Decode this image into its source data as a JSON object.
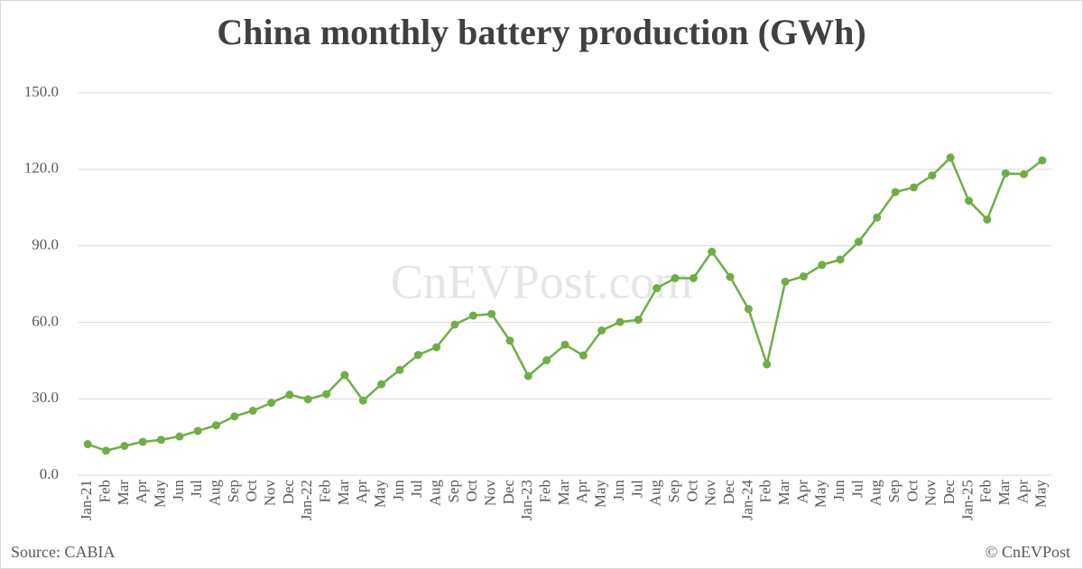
{
  "chart_data": {
    "type": "line",
    "title": "China monthly battery production (GWh)",
    "categories": [
      "Jan-21",
      "Feb",
      "Mar",
      "Apr",
      "May",
      "Jun",
      "Jul",
      "Aug",
      "Sep",
      "Oct",
      "Nov",
      "Dec",
      "Jan-22",
      "Feb",
      "Mar",
      "Apr",
      "May",
      "Jun",
      "Jul",
      "Aug",
      "Sep",
      "Oct",
      "Nov",
      "Dec",
      "Jan-23",
      "Feb",
      "Mar",
      "Apr",
      "May",
      "Jun",
      "Jul",
      "Aug",
      "Sep",
      "Oct",
      "Nov",
      "Dec",
      "Jan-24",
      "Feb",
      "Mar",
      "Apr",
      "May",
      "Jun",
      "Jul",
      "Aug",
      "Sep",
      "Oct",
      "Nov",
      "Dec",
      "Jan-25",
      "Feb",
      "Mar",
      "Apr",
      "May"
    ],
    "values": [
      12.2,
      9.6,
      11.5,
      13.1,
      13.9,
      15.2,
      17.4,
      19.6,
      23.1,
      25.3,
      28.4,
      31.6,
      29.8,
      31.8,
      39.3,
      29.3,
      35.7,
      41.3,
      47.2,
      50.2,
      59.1,
      62.6,
      63.3,
      52.8,
      38.9,
      45.1,
      51.2,
      47.0,
      56.8,
      60.1,
      61.0,
      73.4,
      77.3,
      77.3,
      87.7,
      77.8,
      65.2,
      43.5,
      75.9,
      78.0,
      82.5,
      84.6,
      91.6,
      101.1,
      111.1,
      112.9,
      117.6,
      124.6,
      107.7,
      100.3,
      118.4,
      118.1,
      123.5
    ],
    "color": "#70ad47",
    "ylim": [
      0,
      150
    ],
    "yticks": [
      {
        "value": 0,
        "label": "0.0"
      },
      {
        "value": 30,
        "label": "30.0"
      },
      {
        "value": 60,
        "label": "60.0"
      },
      {
        "value": 90,
        "label": "90.0"
      },
      {
        "value": 120,
        "label": "120.0"
      },
      {
        "value": 150,
        "label": "150.0"
      }
    ],
    "grid": true,
    "watermark": "CnEVPost.com",
    "source": "Source: CABIA",
    "credit": "© CnEVPost"
  }
}
